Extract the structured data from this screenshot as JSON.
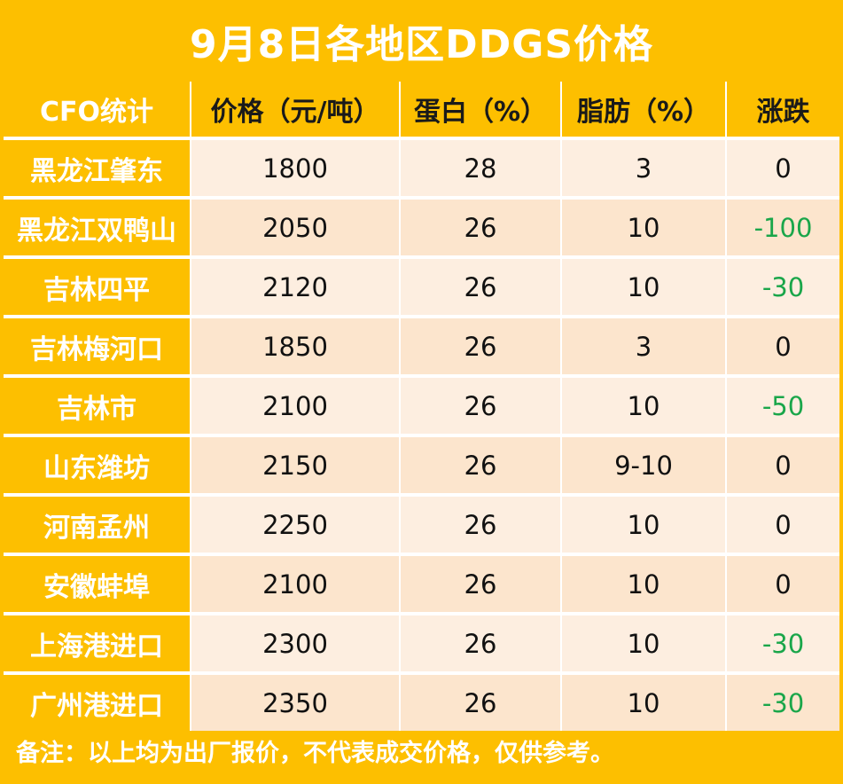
{
  "title": "9月8日各地区DDGS价格",
  "headers": [
    "CFO统计",
    "价格（元/吨）",
    "蛋白（%）",
    "脂肪（%）",
    "涨跌"
  ],
  "rows": [
    {
      "region": "黑龙江肇东",
      "price": "1800",
      "protein": "28",
      "fat": "3",
      "change": "0"
    },
    {
      "region": "黑龙江双鸭山",
      "price": "2050",
      "protein": "26",
      "fat": "10",
      "change": "-100"
    },
    {
      "region": "吉林四平",
      "price": "2120",
      "protein": "26",
      "fat": "10",
      "change": "-30"
    },
    {
      "region": "吉林梅河口",
      "price": "1850",
      "protein": "26",
      "fat": "3",
      "change": "0"
    },
    {
      "region": "吉林市",
      "price": "2100",
      "protein": "26",
      "fat": "10",
      "change": "-50"
    },
    {
      "region": "山东潍坊",
      "price": "2150",
      "protein": "26",
      "fat": "9-10",
      "change": "0"
    },
    {
      "region": "河南孟州",
      "price": "2250",
      "protein": "26",
      "fat": "10",
      "change": "0"
    },
    {
      "region": "安徽蚌埠",
      "price": "2100",
      "protein": "26",
      "fat": "10",
      "change": "0"
    },
    {
      "region": "上海港进口",
      "price": "2300",
      "protein": "26",
      "fat": "10",
      "change": "-30"
    },
    {
      "region": "广州港进口",
      "price": "2350",
      "protein": "26",
      "fat": "10",
      "change": "-30"
    }
  ],
  "note": "备注：以上均为出厂报价，不代表成交价格，仅供参考。",
  "colors": {
    "banner": "#fdbf00",
    "row_light": "#fdeee0",
    "row_dark": "#fce5cd",
    "negative": "#1aa64a"
  }
}
